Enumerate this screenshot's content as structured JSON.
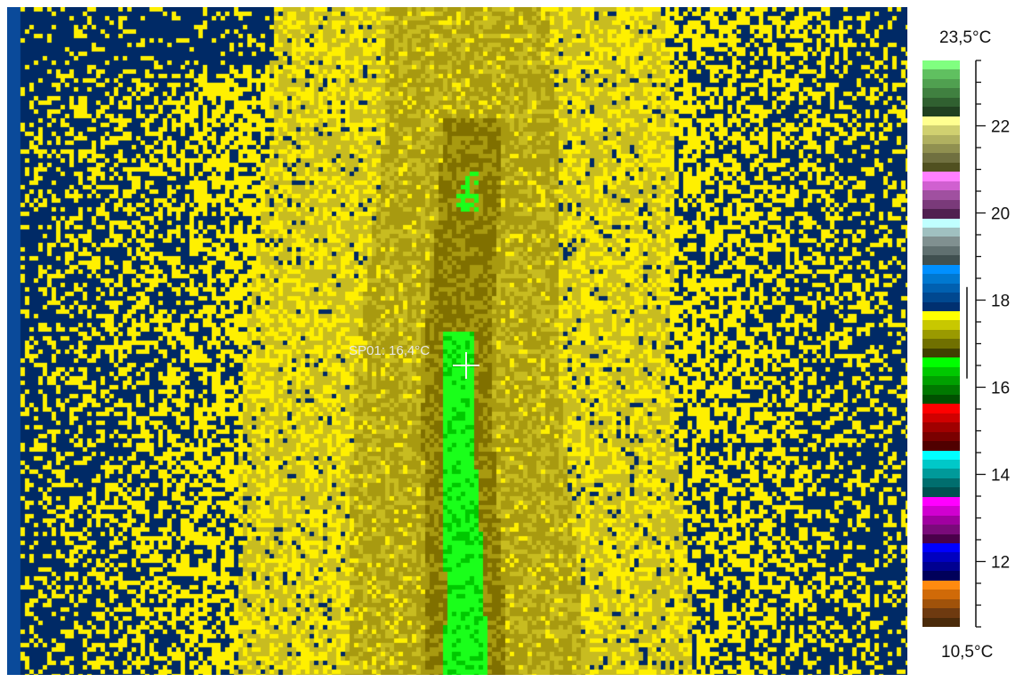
{
  "spot": {
    "label": "SP01: 16,4°C",
    "value_c": 16.4
  },
  "scale": {
    "max_label": "23,5°C",
    "min_label": "10,5°C",
    "min_c": 10.5,
    "max_c": 23.5,
    "tick_labels": [
      "12",
      "14",
      "16",
      "18",
      "20",
      "22"
    ],
    "tick_values": [
      12,
      14,
      16,
      18,
      20,
      22
    ],
    "minor_step": 0.5,
    "range_marker_c": [
      16.2,
      18.3
    ]
  },
  "palette_colors": [
    "#4a2a0a",
    "#6e3a10",
    "#a0520a",
    "#d06a08",
    "#ff8a10",
    "#00005a",
    "#000090",
    "#0000c0",
    "#0000ff",
    "#4a004a",
    "#7a0a7a",
    "#a000a0",
    "#d000d0",
    "#ff00ff",
    "#005050",
    "#006e6e",
    "#009a9a",
    "#00c8c8",
    "#00ffff",
    "#500000",
    "#7a0000",
    "#a00000",
    "#d00000",
    "#ff0000",
    "#005000",
    "#007800",
    "#00a000",
    "#00c800",
    "#00ff00",
    "#404000",
    "#707000",
    "#9a9a00",
    "#c8c800",
    "#ffff00",
    "#003070",
    "#004890",
    "#0060b0",
    "#0078d0",
    "#0090ff",
    "#405050",
    "#607070",
    "#809090",
    "#a0c0c0",
    "#c0ffff",
    "#502050",
    "#7a3a7a",
    "#a050a0",
    "#d060d0",
    "#ff80ff",
    "#505020",
    "#707040",
    "#909050",
    "#b0b060",
    "#d0d070",
    "#ffff90",
    "#204020",
    "#306030",
    "#408040",
    "#50a050",
    "#60c060",
    "#80ff80"
  ],
  "thermal_colors": {
    "background_blue": "#002a66",
    "edge_blue": "#0a4a9a",
    "yellow": "#fff000",
    "olive_light": "#c8bc20",
    "olive_mid": "#a89a10",
    "olive_dark": "#807000",
    "green_bright": "#1aff1a",
    "green_mid": "#00c800",
    "green_dark": "#009800"
  }
}
